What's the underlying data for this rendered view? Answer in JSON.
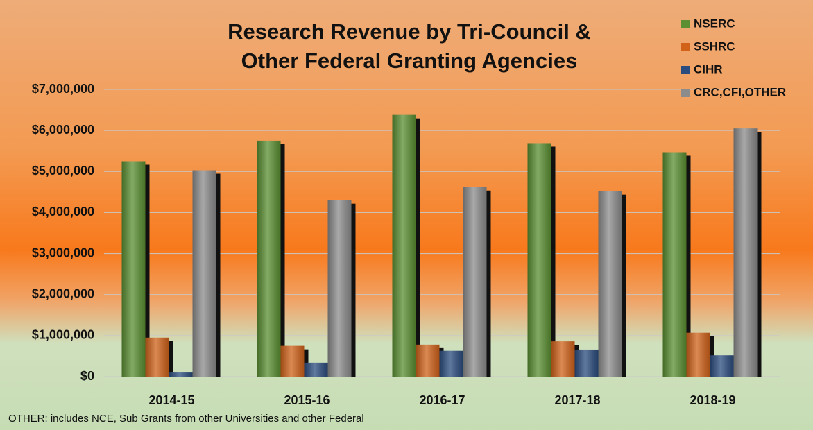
{
  "chart_data": {
    "type": "bar",
    "title": [
      "Research Revenue by Tri-Council &",
      "Other Federal Granting Agencies"
    ],
    "categories": [
      "2014-15",
      "2015-16",
      "2016-17",
      "2017-18",
      "2018-19"
    ],
    "series": [
      {
        "name": "NSERC",
        "color": "#5b8f32",
        "values": [
          5250000,
          5750000,
          6380000,
          5690000,
          5470000
        ]
      },
      {
        "name": "SSHRC",
        "color": "#d0621a",
        "values": [
          950000,
          750000,
          780000,
          860000,
          1070000
        ]
      },
      {
        "name": "CIHR",
        "color": "#2b4c7e",
        "values": [
          100000,
          340000,
          630000,
          660000,
          520000
        ]
      },
      {
        "name": "CRC,CFI,OTHER",
        "color": "#8c8c8c",
        "values": [
          5030000,
          4300000,
          4620000,
          4520000,
          6050000
        ]
      }
    ],
    "ylim": [
      0,
      7000000
    ],
    "yticks": [
      {
        "value": 0,
        "label": "$0"
      },
      {
        "value": 1000000,
        "label": "$1,000,000"
      },
      {
        "value": 2000000,
        "label": "$2,000,000"
      },
      {
        "value": 3000000,
        "label": "$3,000,000"
      },
      {
        "value": 4000000,
        "label": "$4,000,000"
      },
      {
        "value": 5000000,
        "label": "$5,000,000"
      },
      {
        "value": 6000000,
        "label": "$6,000,000"
      },
      {
        "value": 7000000,
        "label": "$7,000,000"
      }
    ],
    "grid": true,
    "legend": "top-right",
    "note": "OTHER: includes NCE, Sub Grants from other Universities and other Federal"
  }
}
